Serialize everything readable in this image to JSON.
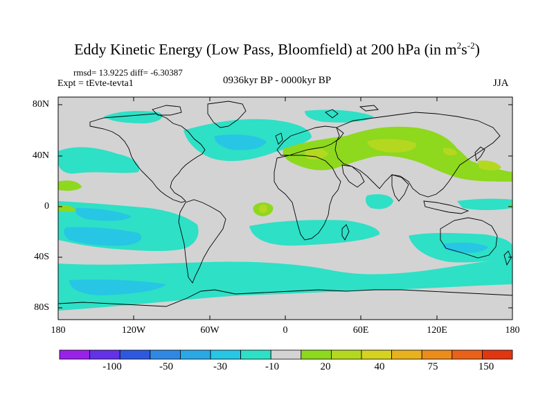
{
  "map": {
    "title": "Eddy Kinetic Energy (Low Pass, Bloomfield) at 200 hPa (in m",
    "title_sup1": "2",
    "title_mid": "s",
    "title_sup2": "-2",
    "title_end": ")",
    "stats": "rmsd= 13.9225  diff= -6.30387",
    "expt": "Expt = tEvte-tevta1",
    "period": "0936kyr BP - 0000kyr BP",
    "season": "JJA",
    "lat_labels": [
      "80N",
      "40N",
      "0",
      "40S",
      "80S"
    ],
    "lon_labels": [
      "180",
      "120W",
      "60W",
      "0",
      "60E",
      "120E",
      "180"
    ],
    "background_color": "#d3d3d3"
  },
  "colorbar": {
    "colors": [
      "#9a22e8",
      "#6432e6",
      "#2e58de",
      "#2f88e4",
      "#2aa9e6",
      "#26c6e4",
      "#2ee0c6",
      "#d3d3d3",
      "#8ed81e",
      "#b4d820",
      "#d6d220",
      "#e8b21e",
      "#ec8c1a",
      "#ea621a",
      "#e03612"
    ],
    "labels": [
      "-100",
      "-50",
      "-30",
      "-10",
      "20",
      "40",
      "75",
      "150"
    ]
  }
}
